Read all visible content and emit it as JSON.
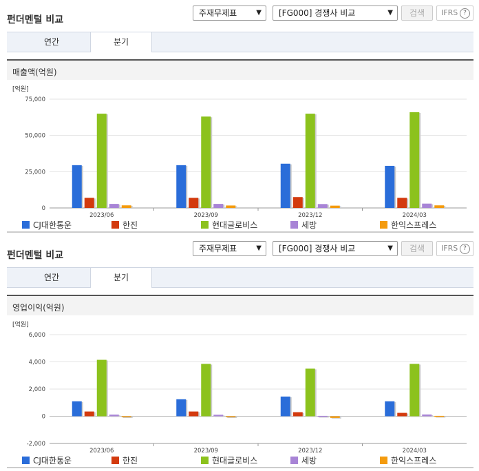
{
  "panels": [
    {
      "title": "펀더멘털 비교",
      "select_report": "주재무제표",
      "select_compare": "[FG000] 경쟁사 비교",
      "search_label": "검색",
      "ifrs_label": "IFRS",
      "tabs": [
        {
          "label": "연간",
          "active": false
        },
        {
          "label": "분기",
          "active": true
        }
      ],
      "chart_title": "매출액(억원)",
      "unit_label": "[억원]",
      "chart_data": {
        "type": "bar",
        "title": "매출액(억원)",
        "unit": "[억원]",
        "categories": [
          "2023/06",
          "2023/09",
          "2023/12",
          "2024/03"
        ],
        "ylim": [
          0,
          75000
        ],
        "yticks": [
          0,
          25000,
          50000,
          75000
        ],
        "ytick_labels": [
          "0",
          "25,000",
          "50,000",
          "75,000"
        ],
        "series": [
          {
            "name": "CJ대한통운",
            "color": "#2a6dd9",
            "values": [
              29500,
              29500,
              30500,
              29000
            ]
          },
          {
            "name": "한진",
            "color": "#d33a0e",
            "values": [
              7000,
              7000,
              7500,
              7000
            ]
          },
          {
            "name": "현대글로비스",
            "color": "#8cc21d",
            "values": [
              65000,
              63000,
              65000,
              66000
            ]
          },
          {
            "name": "세방",
            "color": "#a884d6",
            "values": [
              2800,
              2800,
              2700,
              3000
            ]
          },
          {
            "name": "한익스프레스",
            "color": "#f49b0e",
            "values": [
              1800,
              1700,
              1600,
              1800
            ]
          }
        ]
      }
    },
    {
      "title": "펀더멘털 비교",
      "select_report": "주재무제표",
      "select_compare": "[FG000] 경쟁사 비교",
      "search_label": "검색",
      "ifrs_label": "IFRS",
      "tabs": [
        {
          "label": "연간",
          "active": false
        },
        {
          "label": "분기",
          "active": true
        }
      ],
      "chart_title": "영업이익(억원)",
      "unit_label": "[억원]",
      "chart_data": {
        "type": "bar",
        "title": "영업이익(억원)",
        "unit": "[억원]",
        "categories": [
          "2023/06",
          "2023/09",
          "2023/12",
          "2024/03"
        ],
        "ylim": [
          -2000,
          6000
        ],
        "yticks": [
          -2000,
          0,
          2000,
          4000,
          6000
        ],
        "ytick_labels": [
          "-2,000",
          "0",
          "2,000",
          "4,000",
          "6,000"
        ],
        "series": [
          {
            "name": "CJ대한통운",
            "color": "#2a6dd9",
            "values": [
              1100,
              1250,
              1450,
              1100
            ]
          },
          {
            "name": "한진",
            "color": "#d33a0e",
            "values": [
              350,
              350,
              300,
              250
            ]
          },
          {
            "name": "현대글로비스",
            "color": "#8cc21d",
            "values": [
              4150,
              3850,
              3500,
              3850
            ]
          },
          {
            "name": "세방",
            "color": "#a884d6",
            "values": [
              120,
              110,
              30,
              130
            ]
          },
          {
            "name": "한익스프레스",
            "color": "#f49b0e",
            "values": [
              -60,
              -40,
              -120,
              30
            ]
          }
        ]
      }
    }
  ]
}
